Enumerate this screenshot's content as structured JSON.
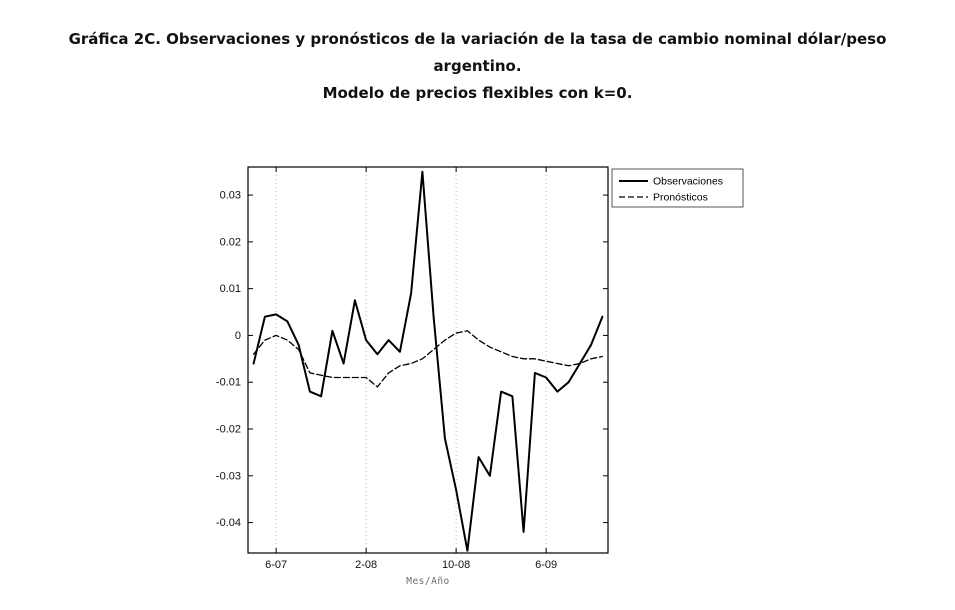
{
  "header": {
    "title": "Gráfica 2C. Observaciones y pronósticos de la variación de la tasa de cambio nominal dólar/peso argentino.",
    "subtitle": "Modelo de precios flexibles con k=0."
  },
  "colors": {
    "background": "#ffffff",
    "line_color": "#000000",
    "grid_color": "#b5b5b5",
    "text_color": "#111111"
  },
  "chart_data": {
    "type": "line",
    "title": "",
    "xlabel": "Mes/Año",
    "ylabel": "",
    "x_note": "monthly observations, point indices 0-31 spanning roughly 4-07 to 11-09",
    "x_tick_labels": [
      "6-07",
      "2-08",
      "10-08",
      "6-09"
    ],
    "x_tick_indices": [
      2,
      10,
      18,
      26
    ],
    "y_ticks": [
      0.03,
      0.02,
      0.01,
      0,
      -0.01,
      -0.02,
      -0.03,
      -0.04
    ],
    "xlim": [
      -0.5,
      31.5
    ],
    "ylim": [
      -0.0465,
      0.036
    ],
    "grid": "vertical-dotted-at-x-ticks",
    "legend_position": "top-right-outside",
    "series": [
      {
        "name": "Observaciones",
        "style": "solid",
        "color": "#000000",
        "values": [
          -0.006,
          0.004,
          0.0045,
          0.003,
          -0.002,
          -0.012,
          -0.013,
          0.001,
          -0.006,
          0.0075,
          -0.001,
          -0.004,
          -0.001,
          -0.0035,
          0.009,
          0.035,
          0.004,
          -0.022,
          -0.033,
          -0.046,
          -0.026,
          -0.03,
          -0.012,
          -0.013,
          -0.042,
          -0.008,
          -0.009,
          -0.012,
          -0.01,
          -0.006,
          -0.002,
          0.004
        ]
      },
      {
        "name": "Pronósticos",
        "style": "dashed",
        "color": "#000000",
        "values": [
          -0.004,
          -0.001,
          0.0,
          -0.001,
          -0.003,
          -0.008,
          -0.0085,
          -0.009,
          -0.009,
          -0.009,
          -0.009,
          -0.011,
          -0.008,
          -0.0065,
          -0.006,
          -0.005,
          -0.003,
          -0.001,
          0.0005,
          0.001,
          -0.001,
          -0.0025,
          -0.0035,
          -0.0045,
          -0.005,
          -0.005,
          -0.0055,
          -0.006,
          -0.0065,
          -0.006,
          -0.005,
          -0.0045
        ]
      }
    ]
  }
}
